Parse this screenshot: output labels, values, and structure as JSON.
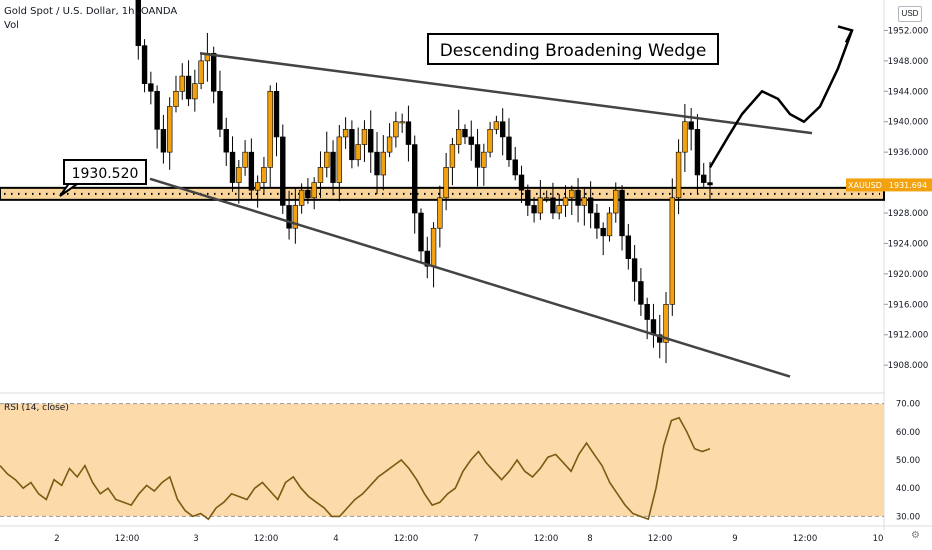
{
  "header": {
    "title": "Gold Spot / U.S. Dollar, 1h, OANDA",
    "vol": "Vol",
    "currency": "USD"
  },
  "annotations": {
    "pattern_label": "Descending Broadening Wedge",
    "level_label": "1930.520",
    "level_value": 1930.52,
    "symbol_tag": "XAUUSD",
    "last_price": "1931.694"
  },
  "rsi": {
    "label": "RSI (14, close)",
    "upper": 70,
    "lower": 30,
    "yticks": [
      "70.00",
      "60.00",
      "50.00",
      "40.00",
      "30.00"
    ]
  },
  "colors": {
    "up": "#f2a10f",
    "down": "#000000",
    "zone": "#f9d49a",
    "band": "#fbd49a",
    "trendline": "#444444",
    "tag": "#f2a10f"
  },
  "chart_data": [
    {
      "type": "candlestick",
      "title": "Gold Spot / U.S. Dollar, 1h, OANDA",
      "xticks": [
        "2",
        "12:00",
        "3",
        "12:00",
        "4",
        "12:00",
        "7",
        "12:00",
        "8",
        "12:00",
        "9",
        "12:00",
        "10"
      ],
      "yticks": [
        1908,
        1912,
        1916,
        1920,
        1924,
        1928,
        1932,
        1936,
        1940,
        1944,
        1948,
        1952
      ],
      "ylim": [
        1905,
        1956
      ],
      "close_path": [
        1960,
        1950,
        1945,
        1944,
        1939,
        1936,
        1942,
        1944,
        1946,
        1943,
        1945,
        1948,
        1949,
        1944,
        1939,
        1936,
        1932,
        1934,
        1936,
        1931,
        1932,
        1934,
        1944,
        1938,
        1929,
        1926,
        1929,
        1931,
        1930,
        1932,
        1934,
        1936,
        1932,
        1938,
        1939,
        1935,
        1937,
        1939,
        1936,
        1933,
        1936,
        1938,
        1940,
        1940,
        1937,
        1928,
        1923,
        1921,
        1926,
        1930,
        1934,
        1937,
        1939,
        1938,
        1937,
        1934,
        1936,
        1939,
        1940,
        1938,
        1935,
        1933,
        1931,
        1929,
        1928,
        1930,
        1930,
        1928,
        1929,
        1930,
        1931,
        1929,
        1930,
        1928,
        1926,
        1925,
        1928,
        1931,
        1925,
        1922,
        1919,
        1916,
        1914,
        1912,
        1911,
        1916,
        1930,
        1936,
        1940,
        1939,
        1933,
        1932,
        1931.694
      ],
      "projection": [
        1934,
        1938,
        1941,
        1944,
        1943,
        1941,
        1940,
        1942,
        1947,
        1952
      ]
    },
    {
      "type": "line",
      "title": "RSI (14, close)",
      "ylim": [
        28,
        72
      ],
      "yticks": [
        70,
        60,
        50,
        40,
        30
      ],
      "values": [
        48,
        45,
        43,
        40,
        42,
        38,
        36,
        43,
        41,
        47,
        44,
        48,
        42,
        38,
        40,
        36,
        35,
        34,
        38,
        41,
        39,
        42,
        44,
        36,
        32,
        30,
        31,
        29,
        33,
        35,
        38,
        37,
        36,
        40,
        42,
        39,
        36,
        42,
        44,
        40,
        37,
        35,
        33,
        30,
        30,
        33,
        36,
        38,
        41,
        44,
        46,
        48,
        50,
        47,
        43,
        38,
        34,
        35,
        38,
        40,
        46,
        50,
        53,
        49,
        46,
        43,
        46,
        50,
        46,
        44,
        47,
        51,
        52,
        49,
        46,
        52,
        56,
        52,
        48,
        42,
        38,
        34,
        31,
        30,
        29,
        40,
        55,
        64,
        65,
        60,
        54,
        53,
        54
      ]
    }
  ]
}
